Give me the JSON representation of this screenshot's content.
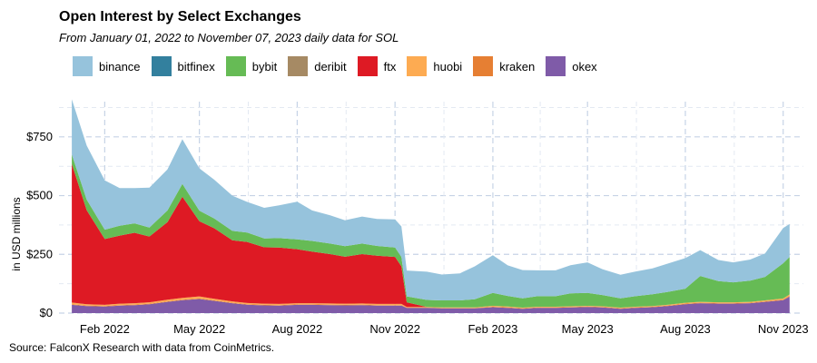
{
  "chart_data": {
    "type": "area",
    "stacked": true,
    "title": "Open Interest by Select Exchanges",
    "subtitle": "From January 01, 2022 to November 07, 2023 daily data for SOL",
    "ylabel": "in USD millions",
    "xlabel": "",
    "source": "Source: FalconX Research with data from CoinMetrics.",
    "ylim": [
      0,
      900
    ],
    "xlim": [
      "2021-12-20",
      "2023-11-20"
    ],
    "yticks": [
      {
        "value": 0,
        "label": "$0"
      },
      {
        "value": 250,
        "label": "$250"
      },
      {
        "value": 500,
        "label": "$500"
      },
      {
        "value": 750,
        "label": "$750"
      }
    ],
    "xticks": [
      {
        "date": "2022-02-01",
        "label": "Feb 2022"
      },
      {
        "date": "2022-05-01",
        "label": "May 2022"
      },
      {
        "date": "2022-08-01",
        "label": "Aug 2022"
      },
      {
        "date": "2022-11-01",
        "label": "Nov 2022"
      },
      {
        "date": "2023-02-01",
        "label": "Feb 2023"
      },
      {
        "date": "2023-05-01",
        "label": "May 2023"
      },
      {
        "date": "2023-08-01",
        "label": "Aug 2023"
      },
      {
        "date": "2023-11-01",
        "label": "Nov 2023"
      }
    ],
    "grid": true,
    "legend_position": "top",
    "x": [
      "2022-01-01",
      "2022-01-15",
      "2022-02-01",
      "2022-02-15",
      "2022-03-01",
      "2022-03-15",
      "2022-04-01",
      "2022-04-15",
      "2022-05-01",
      "2022-05-15",
      "2022-06-01",
      "2022-06-15",
      "2022-07-01",
      "2022-07-15",
      "2022-08-01",
      "2022-08-15",
      "2022-09-01",
      "2022-09-15",
      "2022-10-01",
      "2022-10-15",
      "2022-11-01",
      "2022-11-07",
      "2022-11-12",
      "2022-12-01",
      "2022-12-15",
      "2023-01-01",
      "2023-01-15",
      "2023-02-01",
      "2023-02-15",
      "2023-03-01",
      "2023-03-15",
      "2023-04-01",
      "2023-04-15",
      "2023-05-01",
      "2023-05-15",
      "2023-06-01",
      "2023-06-15",
      "2023-07-01",
      "2023-07-15",
      "2023-08-01",
      "2023-08-15",
      "2023-09-01",
      "2023-09-15",
      "2023-10-01",
      "2023-10-15",
      "2023-11-01",
      "2023-11-07"
    ],
    "series": [
      {
        "name": "okex",
        "color": "#7f5ba8",
        "values": [
          35,
          30,
          28,
          32,
          34,
          38,
          48,
          55,
          60,
          52,
          42,
          36,
          33,
          32,
          35,
          35,
          34,
          33,
          34,
          32,
          32,
          32,
          22,
          22,
          20,
          20,
          20,
          25,
          22,
          18,
          22,
          22,
          24,
          26,
          24,
          18,
          22,
          25,
          30,
          38,
          42,
          40,
          40,
          42,
          48,
          55,
          70
        ]
      },
      {
        "name": "kraken",
        "color": "#e67f33",
        "values": [
          2,
          2,
          2,
          2,
          2,
          2,
          2,
          2,
          2,
          2,
          2,
          2,
          2,
          2,
          2,
          2,
          2,
          2,
          2,
          2,
          2,
          2,
          1,
          1,
          1,
          1,
          1,
          2,
          2,
          2,
          2,
          2,
          2,
          2,
          2,
          2,
          2,
          2,
          2,
          2,
          2,
          2,
          2,
          2,
          2,
          2,
          3
        ]
      },
      {
        "name": "huobi",
        "color": "#fdab52",
        "values": [
          8,
          6,
          5,
          6,
          6,
          6,
          7,
          8,
          9,
          7,
          6,
          5,
          5,
          5,
          5,
          5,
          5,
          5,
          5,
          5,
          5,
          5,
          3,
          3,
          3,
          3,
          3,
          4,
          4,
          3,
          3,
          3,
          3,
          3,
          3,
          3,
          3,
          3,
          3,
          4,
          4,
          4,
          4,
          4,
          4,
          5,
          6
        ]
      },
      {
        "name": "ftx",
        "color": "#de1a24",
        "values": [
          590,
          400,
          280,
          290,
          300,
          280,
          330,
          430,
          320,
          300,
          260,
          260,
          240,
          240,
          230,
          220,
          210,
          200,
          210,
          205,
          200,
          160,
          20,
          0,
          0,
          0,
          0,
          0,
          0,
          0,
          0,
          0,
          0,
          0,
          0,
          0,
          0,
          0,
          0,
          0,
          0,
          0,
          0,
          0,
          0,
          0,
          0
        ]
      },
      {
        "name": "deribit",
        "color": "#a68a64",
        "values": [
          0,
          0,
          0,
          0,
          0,
          0,
          0,
          0,
          0,
          0,
          0,
          0,
          0,
          0,
          0,
          0,
          0,
          0,
          0,
          0,
          0,
          0,
          0,
          0,
          0,
          0,
          0,
          0,
          0,
          0,
          0,
          0,
          0,
          0,
          0,
          0,
          0,
          0,
          0,
          0,
          0,
          0,
          0,
          0,
          0,
          0,
          0
        ]
      },
      {
        "name": "bybit",
        "color": "#66bb55",
        "values": [
          40,
          45,
          40,
          42,
          40,
          38,
          50,
          55,
          45,
          42,
          40,
          40,
          38,
          40,
          42,
          45,
          45,
          45,
          45,
          42,
          40,
          40,
          25,
          30,
          30,
          30,
          35,
          55,
          45,
          40,
          45,
          45,
          55,
          55,
          48,
          40,
          45,
          50,
          55,
          60,
          110,
          90,
          85,
          90,
          100,
          150,
          160
        ]
      },
      {
        "name": "bitfinex",
        "color": "#33809e",
        "values": [
          0,
          0,
          0,
          0,
          0,
          0,
          0,
          0,
          0,
          0,
          0,
          0,
          0,
          0,
          0,
          0,
          0,
          0,
          0,
          0,
          0,
          0,
          0,
          0,
          0,
          0,
          0,
          0,
          0,
          0,
          0,
          0,
          0,
          0,
          0,
          0,
          0,
          0,
          0,
          0,
          0,
          0,
          0,
          0,
          0,
          0,
          0
        ]
      },
      {
        "name": "binance",
        "color": "#96c3dc",
        "values": [
          235,
          230,
          210,
          160,
          150,
          170,
          175,
          190,
          180,
          165,
          150,
          130,
          130,
          140,
          160,
          130,
          120,
          110,
          115,
          115,
          120,
          130,
          110,
          120,
          110,
          115,
          140,
          160,
          130,
          120,
          110,
          110,
          120,
          130,
          110,
          100,
          105,
          110,
          120,
          130,
          110,
          90,
          85,
          90,
          100,
          150,
          140
        ]
      }
    ]
  },
  "legend_order": [
    "binance",
    "bitfinex",
    "bybit",
    "deribit",
    "ftx",
    "huobi",
    "kraken",
    "okex"
  ]
}
